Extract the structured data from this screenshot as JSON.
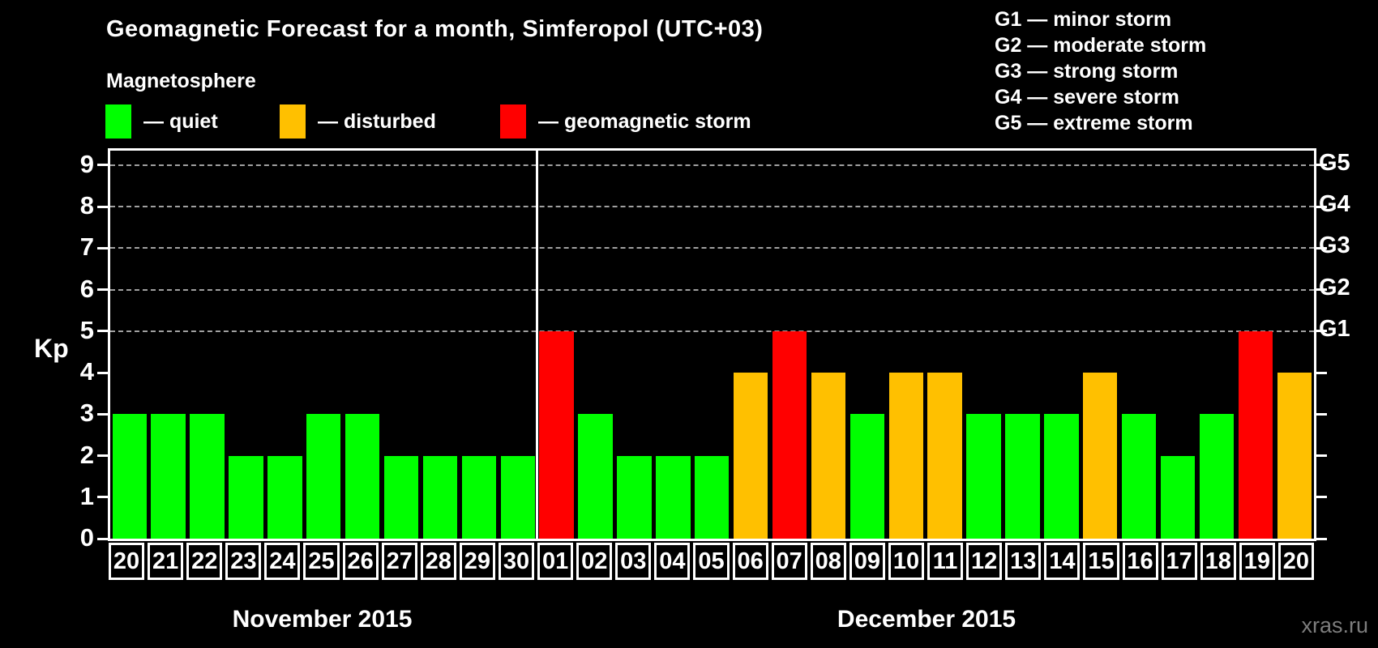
{
  "title": "Geomagnetic Forecast for a month, Simferopol (UTC+03)",
  "watermark": "xras.ru",
  "legend": {
    "title": "Magnetosphere",
    "items": [
      {
        "name": "quiet",
        "label": "— quiet",
        "color": "#00ff00"
      },
      {
        "name": "disturbed",
        "label": "— disturbed",
        "color": "#ffc000"
      },
      {
        "name": "storm",
        "label": "— geomagnetic storm",
        "color": "#ff0000"
      }
    ]
  },
  "storm_scale": [
    "G1 — minor storm",
    "G2 — moderate storm",
    "G3 — strong storm",
    "G4 — severe storm",
    "G5 — extreme storm"
  ],
  "axis": {
    "ylabel": "Kp",
    "yticks": [
      0,
      1,
      2,
      3,
      4,
      5,
      6,
      7,
      8,
      9
    ],
    "right_labels": [
      {
        "kp": 5,
        "label": "G1"
      },
      {
        "kp": 6,
        "label": "G2"
      },
      {
        "kp": 7,
        "label": "G3"
      },
      {
        "kp": 8,
        "label": "G4"
      },
      {
        "kp": 9,
        "label": "G5"
      }
    ],
    "grid_levels": [
      5,
      6,
      7,
      8,
      9
    ]
  },
  "months": [
    {
      "label": "November 2015",
      "days": 11
    },
    {
      "label": "December 2015",
      "days": 20
    }
  ],
  "chart_data": {
    "type": "bar",
    "title": "Geomagnetic Forecast for a month, Simferopol (UTC+03)",
    "xlabel": "",
    "ylabel": "Kp",
    "ylim": [
      0,
      9.35
    ],
    "grid": "dashed horizontal at Kp 5-9",
    "legend_position": "top-left",
    "categories": [
      "20",
      "21",
      "22",
      "23",
      "24",
      "25",
      "26",
      "27",
      "28",
      "29",
      "30",
      "01",
      "02",
      "03",
      "04",
      "05",
      "06",
      "07",
      "08",
      "09",
      "10",
      "11",
      "12",
      "13",
      "14",
      "15",
      "16",
      "17",
      "18",
      "19",
      "20"
    ],
    "values": [
      3,
      3,
      3,
      2,
      2,
      3,
      3,
      2,
      2,
      2,
      2,
      5,
      3,
      2,
      2,
      2,
      4,
      5,
      4,
      3,
      4,
      4,
      3,
      3,
      3,
      4,
      3,
      2,
      3,
      5,
      4
    ],
    "statuses": [
      "quiet",
      "quiet",
      "quiet",
      "quiet",
      "quiet",
      "quiet",
      "quiet",
      "quiet",
      "quiet",
      "quiet",
      "quiet",
      "storm",
      "quiet",
      "quiet",
      "quiet",
      "quiet",
      "disturbed",
      "storm",
      "disturbed",
      "quiet",
      "disturbed",
      "disturbed",
      "quiet",
      "quiet",
      "quiet",
      "disturbed",
      "quiet",
      "quiet",
      "quiet",
      "storm",
      "disturbed"
    ],
    "colors": {
      "quiet": "#00ff00",
      "disturbed": "#ffc000",
      "storm": "#ff0000"
    }
  }
}
